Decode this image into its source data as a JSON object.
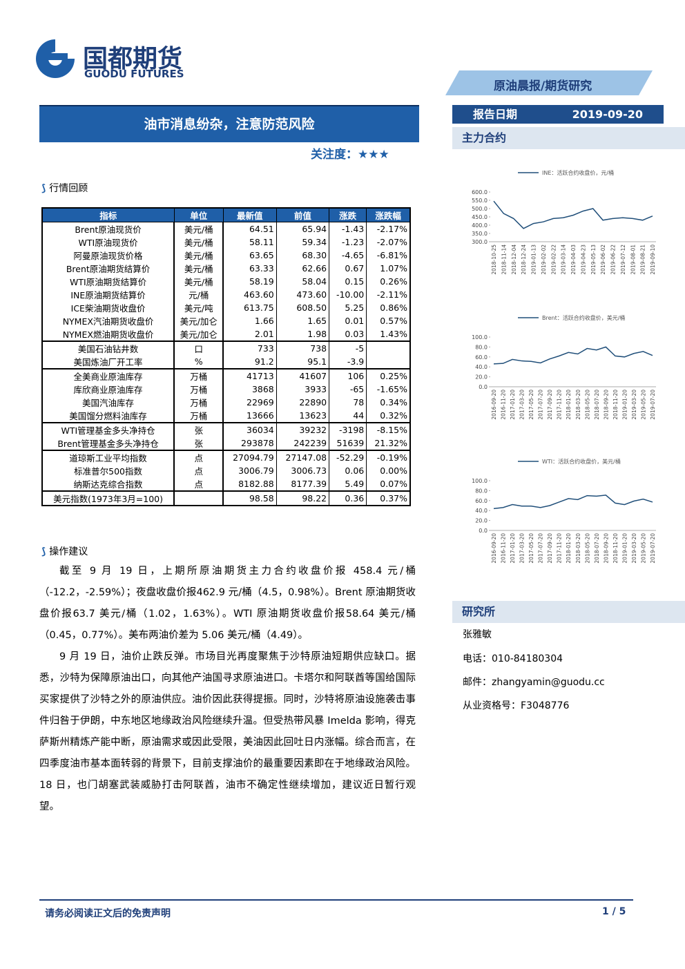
{
  "header": {
    "logo_cn": "国都期货",
    "logo_en": "GUODU FUTURES",
    "banner": "原油晨报/期货研究"
  },
  "title": "油市消息纷杂，注意防范风险",
  "attention": "关注度：★★★",
  "report_date": {
    "label": "报告日期",
    "value": "2019-09-20"
  },
  "sidebar_heading": "主力合约",
  "section1": "行情回顾",
  "table": {
    "header": [
      "指标",
      "单位",
      "最新值",
      "前值",
      "涨跌",
      "涨跌幅"
    ],
    "rows": [
      [
        "Brent原油现货价",
        "美元/桶",
        "64.51",
        "65.94",
        "-1.43",
        "-2.17%"
      ],
      [
        "WTI原油现货价",
        "美元/桶",
        "58.11",
        "59.34",
        "-1.23",
        "-2.07%"
      ],
      [
        "阿曼原油现货价格",
        "美元/桶",
        "63.65",
        "68.30",
        "-4.65",
        "-6.81%"
      ],
      [
        "Brent原油期货结算价",
        "美元/桶",
        "63.33",
        "62.66",
        "0.67",
        "1.07%"
      ],
      [
        "WTI原油期货结算价",
        "美元/桶",
        "58.19",
        "58.04",
        "0.15",
        "0.26%"
      ],
      [
        "INE原油期货结算价",
        "元/桶",
        "463.60",
        "473.60",
        "-10.00",
        "-2.11%"
      ],
      [
        "ICE柴油期货收盘价",
        "美元/吨",
        "613.75",
        "608.50",
        "5.25",
        "0.86%"
      ],
      [
        "NYMEX汽油期货收盘价",
        "美元/加仑",
        "1.66",
        "1.65",
        "0.01",
        "0.57%"
      ],
      [
        "NYMEX燃油期货收盘价",
        "美元/加仑",
        "2.01",
        "1.98",
        "0.03",
        "1.43%"
      ],
      [
        "美国石油钻井数",
        "口",
        "733",
        "738",
        "-5",
        null
      ],
      [
        "美国炼油厂开工率",
        "%",
        "91.2",
        "95.1",
        "-3.9",
        null
      ],
      [
        "全美商业原油库存",
        "万桶",
        "41713",
        "41607",
        "106",
        "0.25%"
      ],
      [
        "库欣商业原油库存",
        "万桶",
        "3868",
        "3933",
        "-65",
        "-1.65%"
      ],
      [
        "美国汽油库存",
        "万桶",
        "22969",
        "22890",
        "78",
        "0.34%"
      ],
      [
        "美国馏分燃料油库存",
        "万桶",
        "13666",
        "13623",
        "44",
        "0.32%"
      ],
      [
        "WTI管理基金多头净持仓",
        "张",
        "36034",
        "39232",
        "-3198",
        "-8.15%"
      ],
      [
        "Brent管理基金多头净持仓",
        "张",
        "293878",
        "242239",
        "51639",
        "21.32%"
      ],
      [
        "道琼斯工业平均指数",
        "点",
        "27094.79",
        "27147.08",
        "-52.29",
        "-0.19%"
      ],
      [
        "标准普尔500指数",
        "点",
        "3006.79",
        "3006.73",
        "0.06",
        "0.00%"
      ],
      [
        "纳斯达克综合指数",
        "点",
        "8182.88",
        "8177.39",
        "5.49",
        "0.07%"
      ],
      [
        "美元指数(1973年3月=100)",
        null,
        "98.58",
        "98.22",
        "0.36",
        "0.37%"
      ]
    ]
  },
  "section2": "操作建议",
  "paragraphs": [
    "截至 9 月 19 日，上期所原油期货主力合约收盘价报 458.4 元/桶（-12.2，-2.59%）；夜盘收盘价报462.9 元/桶（4.5，0.98%）。Brent 原油期货收盘价报63.7 美元/桶（1.02，1.63%）。WTI 原油期货收盘价报58.64 美元/桶（0.45，0.77%）。美布两油价差为 5.06 美元/桶（4.49）。",
    "9 月 19 日，油价止跌反弹。市场目光再度聚焦于沙特原油短期供应缺口。据悉，沙特为保障原油出口，向其他产油国寻求原油进口。卡塔尔和阿联酋等国给国际买家提供了沙特之外的原油供应。油价因此获得提振。同时，沙特将原油设施袭击事件归咎于伊朗，中东地区地缘政治风险继续升温。但受热带风暴 Imelda 影响，得克萨斯州精炼产能中断，原油需求或因此受限，美油因此回吐日内涨幅。综合而言，在四季度油市基本面转弱的背景下，目前支撑油价的最重要因素即在于地缘政治风险。18 日，也门胡塞武装威胁打击阿联酋，油市不确定性继续增加，建议近日暂行观望。"
  ],
  "institute": {
    "heading": "研究所",
    "name": "张雅敏",
    "phone": "电话：010-84180304",
    "email": "邮件：zhangyamin@guodu.cc",
    "license": "从业资格号：F3048776"
  },
  "footer": {
    "disclaimer": "请务必阅读正文后的免责声明",
    "page": "1 / 5"
  },
  "chart_data": [
    {
      "type": "line",
      "categories": [
        "2018-10-25",
        "2018-11-14",
        "2018-12-04",
        "2018-12-24",
        "2019-01-13",
        "2019-02-02",
        "2019-02-22",
        "2019-03-14",
        "2019-04-03",
        "2019-04-23",
        "2019-05-13",
        "2019-06-02",
        "2019-06-22",
        "2019-07-12",
        "2019-08-01",
        "2019-08-21",
        "2019-09-10"
      ],
      "series": [
        {
          "name": "INE：活跃合约收盘价，元/桶",
          "color": "#1f4e79",
          "values": [
            545,
            470,
            440,
            380,
            410,
            420,
            440,
            445,
            460,
            485,
            500,
            430,
            440,
            445,
            440,
            430,
            455
          ]
        }
      ],
      "ylim": [
        300,
        600
      ],
      "yticks": [
        {
          "value": 300,
          "label": "300.0"
        },
        {
          "value": 350,
          "label": "350.0"
        },
        {
          "value": 400,
          "label": "400.0"
        },
        {
          "value": 450,
          "label": "450.0"
        },
        {
          "value": 500,
          "label": "500.0"
        },
        {
          "value": 550,
          "label": "550.0"
        },
        {
          "value": 600,
          "label": "600.0"
        }
      ]
    },
    {
      "type": "line",
      "categories": [
        "2016-09-20",
        "2016-11-20",
        "2017-01-20",
        "2017-03-20",
        "2017-05-20",
        "2017-07-20",
        "2017-09-20",
        "2017-11-20",
        "2018-01-20",
        "2018-03-20",
        "2018-05-20",
        "2018-07-20",
        "2018-09-20",
        "2018-11-20",
        "2019-01-20",
        "2019-03-20",
        "2019-05-20",
        "2019-07-20"
      ],
      "series": [
        {
          "name": "Brent：活跃合约收盘价，美元/桶",
          "color": "#1f4e79",
          "values": [
            46,
            47,
            55,
            52,
            51,
            48,
            56,
            62,
            69,
            66,
            77,
            74,
            80,
            62,
            60,
            67,
            71,
            63
          ]
        }
      ],
      "ylim": [
        0,
        100
      ],
      "yticks": [
        {
          "value": 0,
          "label": "0.0"
        },
        {
          "value": 20,
          "label": "20.0"
        },
        {
          "value": 40,
          "label": "40.0"
        },
        {
          "value": 60,
          "label": "60.0"
        },
        {
          "value": 80,
          "label": "80.0"
        },
        {
          "value": 100,
          "label": "100.0"
        }
      ]
    },
    {
      "type": "line",
      "categories": [
        "2016-09-20",
        "2016-11-20",
        "2017-01-20",
        "2017-03-20",
        "2017-05-20",
        "2017-07-20",
        "2017-09-20",
        "2017-11-20",
        "2018-01-20",
        "2018-03-20",
        "2018-05-20",
        "2018-07-20",
        "2018-09-20",
        "2018-11-20",
        "2019-01-20",
        "2019-03-20",
        "2019-05-20",
        "2019-07-20"
      ],
      "series": [
        {
          "name": "WTI：活跃合约收盘价，美元/桶",
          "color": "#1f4e79",
          "values": [
            44,
            46,
            52,
            49,
            49,
            46,
            50,
            57,
            64,
            62,
            70,
            69,
            71,
            55,
            52,
            59,
            63,
            57
          ]
        }
      ],
      "ylim": [
        0,
        100
      ],
      "yticks": [
        {
          "value": 0,
          "label": "0.0"
        },
        {
          "value": 20,
          "label": "20.0"
        },
        {
          "value": 40,
          "label": "40.0"
        },
        {
          "value": 60,
          "label": "60.0"
        },
        {
          "value": 80,
          "label": "80.0"
        },
        {
          "value": 100,
          "label": "100.0"
        }
      ]
    }
  ]
}
